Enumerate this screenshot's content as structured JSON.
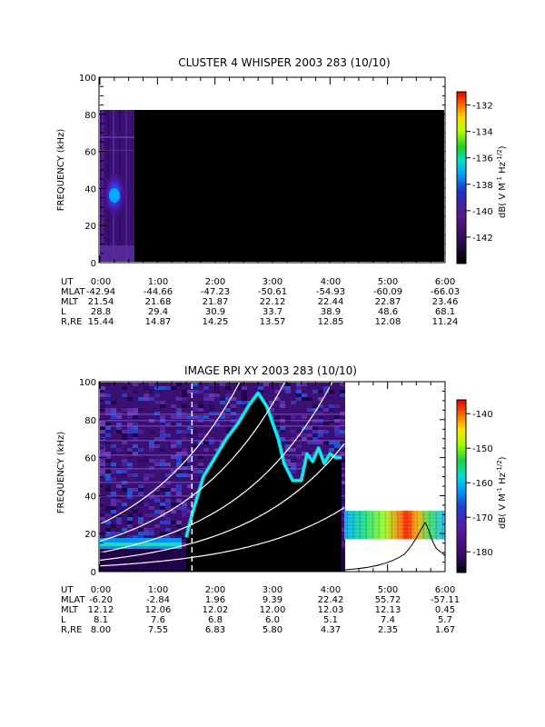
{
  "chart_data": [
    {
      "type": "heatmap",
      "title": "CLUSTER 4 WHISPER 2003 283 (10/10)",
      "ylabel": "FREQUENCY (kHz)",
      "ylim": [
        0,
        100
      ],
      "yticks": [
        "0",
        "20",
        "40",
        "60",
        "80",
        "100"
      ],
      "xlim_hours": [
        0,
        6
      ],
      "data_extent": {
        "freq_max_khz": 80,
        "active_until_hours": 0.6,
        "hotspot_freq_khz": 38,
        "hotspot_hours": 0.25
      },
      "colorbar": {
        "ticks": [
          "-132",
          "-134",
          "-136",
          "-138",
          "-140",
          "-142"
        ],
        "tick_values": [
          -132,
          -134,
          -136,
          -138,
          -140,
          -142
        ],
        "range": [
          -144,
          -131
        ],
        "label": "dB( V M",
        "label_sup1": "-1",
        "label_mid": " Hz",
        "label_sup2": "-1/2",
        "label_end": ")"
      },
      "ephemeris": {
        "row_labels": [
          "UT",
          "MLAT",
          "MLT",
          "L",
          "R,RE"
        ],
        "columns": [
          [
            "0:00",
            "1:00",
            "2:00",
            "3:00",
            "4:00",
            "5:00",
            "6:00"
          ],
          [
            "-42.94",
            "-44.66",
            "-47.23",
            "-50.61",
            "-54.93",
            "-60.09",
            "-66.03"
          ],
          [
            "21.54",
            "21.68",
            "21.87",
            "22.12",
            "22.44",
            "22.87",
            "23.46"
          ],
          [
            "28.8",
            "29.4",
            "30.9",
            "33.7",
            "38.9",
            "48.6",
            "68.1"
          ],
          [
            "15.44",
            "14.87",
            "14.25",
            "13.57",
            "12.85",
            "12.08",
            "11.24"
          ]
        ]
      }
    },
    {
      "type": "heatmap",
      "title": "IMAGE RPI XY 2003 283 (10/10)",
      "ylabel": "FREQUENCY (kHz)",
      "ylim": [
        0,
        100
      ],
      "yticks": [
        "0",
        "20",
        "40",
        "60",
        "80",
        "100"
      ],
      "xlim_hours": [
        0,
        6
      ],
      "dashed_marker_hours": 1.6,
      "plasmapause_trace_hours": [
        1.5,
        1.6,
        1.8,
        2.0,
        2.2,
        2.4,
        2.6,
        2.75,
        2.9,
        3.1,
        3.2,
        3.35,
        3.5,
        3.6,
        3.7,
        3.8,
        3.9,
        4.0,
        4.1,
        4.2
      ],
      "plasmapause_trace_khz": [
        18,
        30,
        50,
        60,
        70,
        78,
        88,
        94,
        87,
        70,
        57,
        48,
        48,
        62,
        58,
        65,
        57,
        62,
        60,
        60
      ],
      "overlay_curves_note": "white curves = gyro/plasma frequency harmonics",
      "high_altitude_band": {
        "start_hours": 4.25,
        "end_hours": 6.0,
        "freq_range_khz": [
          17,
          32
        ]
      },
      "colorbar": {
        "ticks": [
          "-140",
          "-150",
          "-160",
          "-170",
          "-180"
        ],
        "tick_values": [
          -140,
          -150,
          -160,
          -170,
          -180
        ],
        "range": [
          -186,
          -136
        ],
        "label": "dB( V M",
        "label_sup1": "-1",
        "label_mid": " Hz",
        "label_sup2": "-1/2",
        "label_end": ")"
      },
      "ephemeris": {
        "row_labels": [
          "UT",
          "MLAT",
          "MLT",
          "L",
          "R,RE"
        ],
        "columns": [
          [
            "0:00",
            "1:00",
            "2:00",
            "3:00",
            "4:00",
            "5:00",
            "6:00"
          ],
          [
            "-6.20",
            "-2.84",
            "1.96",
            "9.39",
            "22.42",
            "55.72",
            "-57.11"
          ],
          [
            "12.12",
            "12.06",
            "12.02",
            "12.00",
            "12.03",
            "12.13",
            "0.45"
          ],
          [
            "8.1",
            "7.6",
            "6.8",
            "6.0",
            "5.1",
            "7.4",
            "5.7"
          ],
          [
            "8.00",
            "7.55",
            "6.83",
            "5.80",
            "4.37",
            "2.35",
            "1.67"
          ]
        ]
      }
    }
  ]
}
